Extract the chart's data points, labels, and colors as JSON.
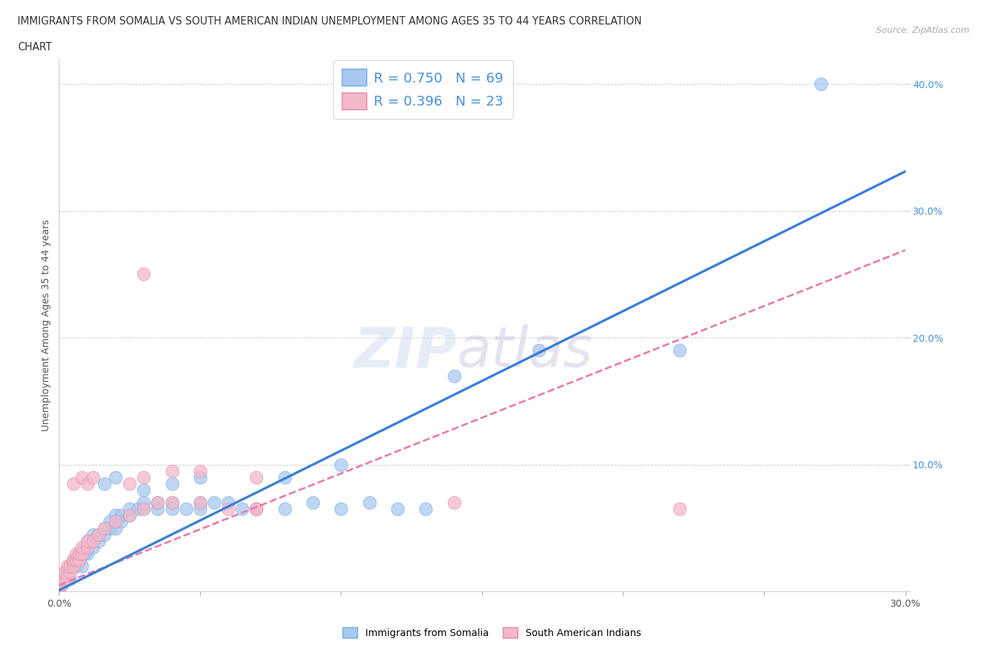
{
  "title_line1": "IMMIGRANTS FROM SOMALIA VS SOUTH AMERICAN INDIAN UNEMPLOYMENT AMONG AGES 35 TO 44 YEARS CORRELATION",
  "title_line2": "CHART",
  "source": "Source: ZipAtlas.com",
  "ylabel": "Unemployment Among Ages 35 to 44 years",
  "xlim": [
    0.0,
    0.3
  ],
  "ylim": [
    0.0,
    0.42
  ],
  "color_somalia": "#a8c8f0",
  "color_sam_indians": "#f4b8c8",
  "line_color_somalia": "#3a7fd5",
  "line_color_sam": "#e87aab",
  "somalia_line": [
    0.0,
    0.001,
    1.1
  ],
  "sam_line": [
    0.0,
    0.005,
    0.88
  ],
  "somalia_points": [
    [
      0.0,
      0.0
    ],
    [
      0.0,
      0.005
    ],
    [
      0.001,
      0.005
    ],
    [
      0.001,
      0.01
    ],
    [
      0.002,
      0.01
    ],
    [
      0.002,
      0.015
    ],
    [
      0.003,
      0.01
    ],
    [
      0.003,
      0.015
    ],
    [
      0.004,
      0.01
    ],
    [
      0.004,
      0.02
    ],
    [
      0.005,
      0.02
    ],
    [
      0.005,
      0.025
    ],
    [
      0.006,
      0.02
    ],
    [
      0.006,
      0.025
    ],
    [
      0.007,
      0.025
    ],
    [
      0.007,
      0.03
    ],
    [
      0.008,
      0.02
    ],
    [
      0.008,
      0.03
    ],
    [
      0.009,
      0.03
    ],
    [
      0.009,
      0.035
    ],
    [
      0.01,
      0.03
    ],
    [
      0.01,
      0.035
    ],
    [
      0.01,
      0.04
    ],
    [
      0.012,
      0.035
    ],
    [
      0.012,
      0.04
    ],
    [
      0.012,
      0.045
    ],
    [
      0.014,
      0.04
    ],
    [
      0.014,
      0.045
    ],
    [
      0.016,
      0.045
    ],
    [
      0.016,
      0.05
    ],
    [
      0.018,
      0.05
    ],
    [
      0.018,
      0.055
    ],
    [
      0.02,
      0.05
    ],
    [
      0.02,
      0.055
    ],
    [
      0.02,
      0.06
    ],
    [
      0.022,
      0.055
    ],
    [
      0.022,
      0.06
    ],
    [
      0.025,
      0.06
    ],
    [
      0.025,
      0.065
    ],
    [
      0.028,
      0.065
    ],
    [
      0.03,
      0.065
    ],
    [
      0.03,
      0.07
    ],
    [
      0.035,
      0.065
    ],
    [
      0.035,
      0.07
    ],
    [
      0.04,
      0.07
    ],
    [
      0.04,
      0.065
    ],
    [
      0.045,
      0.065
    ],
    [
      0.05,
      0.065
    ],
    [
      0.05,
      0.07
    ],
    [
      0.055,
      0.07
    ],
    [
      0.06,
      0.07
    ],
    [
      0.065,
      0.065
    ],
    [
      0.07,
      0.065
    ],
    [
      0.08,
      0.065
    ],
    [
      0.09,
      0.07
    ],
    [
      0.1,
      0.065
    ],
    [
      0.11,
      0.07
    ],
    [
      0.12,
      0.065
    ],
    [
      0.13,
      0.065
    ],
    [
      0.03,
      0.08
    ],
    [
      0.04,
      0.085
    ],
    [
      0.05,
      0.09
    ],
    [
      0.08,
      0.09
    ],
    [
      0.1,
      0.1
    ],
    [
      0.14,
      0.17
    ],
    [
      0.17,
      0.19
    ],
    [
      0.22,
      0.19
    ],
    [
      0.27,
      0.4
    ],
    [
      0.016,
      0.085
    ],
    [
      0.02,
      0.09
    ]
  ],
  "sam_points": [
    [
      0.0,
      0.0
    ],
    [
      0.0,
      0.005
    ],
    [
      0.001,
      0.005
    ],
    [
      0.001,
      0.01
    ],
    [
      0.002,
      0.01
    ],
    [
      0.002,
      0.015
    ],
    [
      0.003,
      0.01
    ],
    [
      0.003,
      0.02
    ],
    [
      0.004,
      0.015
    ],
    [
      0.004,
      0.02
    ],
    [
      0.005,
      0.02
    ],
    [
      0.005,
      0.025
    ],
    [
      0.006,
      0.025
    ],
    [
      0.006,
      0.03
    ],
    [
      0.007,
      0.025
    ],
    [
      0.007,
      0.03
    ],
    [
      0.008,
      0.03
    ],
    [
      0.008,
      0.035
    ],
    [
      0.01,
      0.035
    ],
    [
      0.01,
      0.04
    ],
    [
      0.012,
      0.04
    ],
    [
      0.014,
      0.045
    ],
    [
      0.016,
      0.05
    ],
    [
      0.02,
      0.055
    ],
    [
      0.025,
      0.06
    ],
    [
      0.03,
      0.065
    ],
    [
      0.035,
      0.07
    ],
    [
      0.04,
      0.07
    ],
    [
      0.05,
      0.07
    ],
    [
      0.06,
      0.065
    ],
    [
      0.07,
      0.065
    ],
    [
      0.025,
      0.085
    ],
    [
      0.03,
      0.09
    ],
    [
      0.04,
      0.095
    ],
    [
      0.05,
      0.095
    ],
    [
      0.07,
      0.09
    ],
    [
      0.14,
      0.07
    ],
    [
      0.07,
      0.065
    ],
    [
      0.005,
      0.085
    ],
    [
      0.008,
      0.09
    ],
    [
      0.01,
      0.085
    ],
    [
      0.012,
      0.09
    ],
    [
      0.03,
      0.25
    ],
    [
      0.22,
      0.065
    ]
  ]
}
